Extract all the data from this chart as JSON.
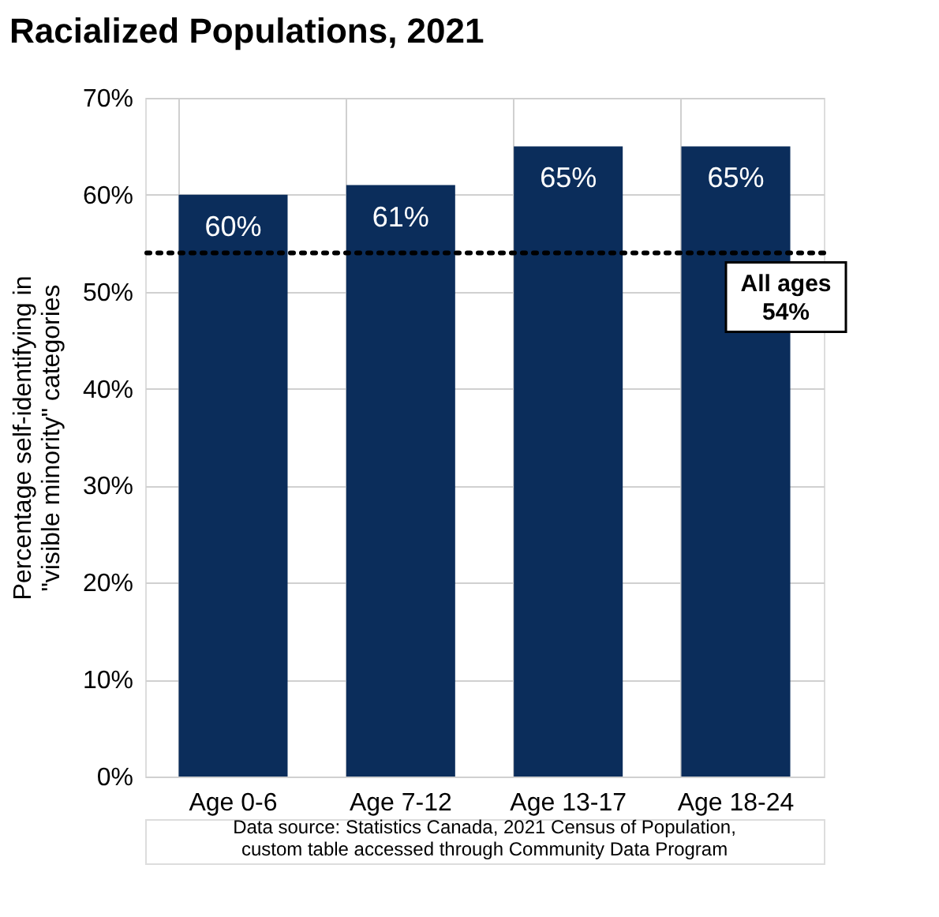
{
  "chart_data": {
    "type": "bar",
    "title": "Racialized Populations, 2021",
    "ylabel": "Percentage self-identifying in \"visible minority\" categories",
    "categories": [
      "Age 0-6",
      "Age 7-12",
      "Age 13-17",
      "Age 18-24"
    ],
    "values": [
      60,
      61,
      65,
      65
    ],
    "color": "#0b2d5b",
    "value_labels": [
      "60%",
      "61%",
      "65%",
      "65%"
    ],
    "ylim": [
      0,
      70
    ],
    "yticks": [
      {
        "value": 0,
        "label": "0%"
      },
      {
        "value": 10,
        "label": "10%"
      },
      {
        "value": 20,
        "label": "20%"
      },
      {
        "value": 30,
        "label": "30%"
      },
      {
        "value": 40,
        "label": "40%"
      },
      {
        "value": 50,
        "label": "50%"
      },
      {
        "value": 60,
        "label": "60%"
      },
      {
        "value": 70,
        "label": "70%"
      }
    ],
    "ref_lines": [
      {
        "axis": "y",
        "value": 54,
        "label": "All ages 54%",
        "color": "#000000",
        "line_style": "dotted"
      }
    ],
    "grid": true,
    "annotations": [
      "Data source: Statistics Canada, 2021 Census of Population, custom table accessed through Community Data Program"
    ]
  }
}
